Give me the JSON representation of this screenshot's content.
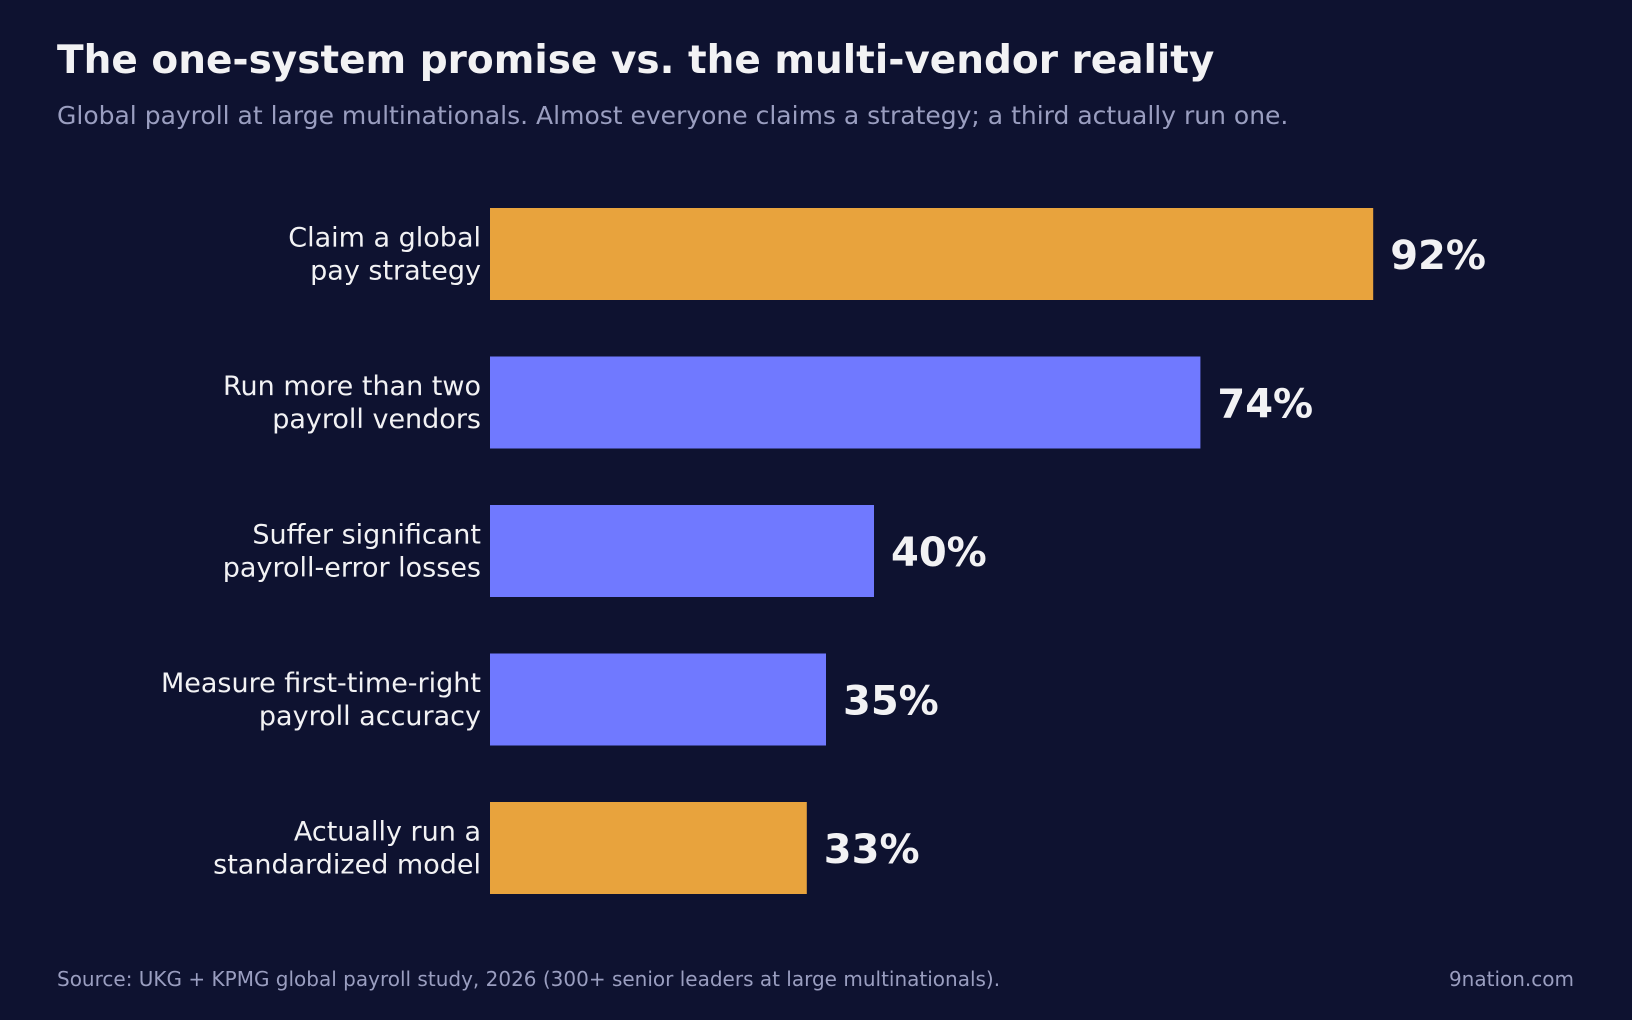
{
  "header": {
    "title": "The one-system promise vs. the multi-vendor reality",
    "subtitle": "Global payroll at large multinationals. Almost everyone claims a strategy; a third actually run one."
  },
  "footer": {
    "source": "Source: UKG + KPMG global payroll study, 2026 (300+ senior leaders at large multinationals).",
    "site": "9nation.com"
  },
  "colors": {
    "background": "#0e1230",
    "highlight": "#e8a33d",
    "default": "#7079ff",
    "label": "#f2f2f4",
    "muted": "#9a9ec0"
  },
  "chart_data": {
    "type": "bar",
    "orientation": "horizontal",
    "title": "The one-system promise vs. the multi-vendor reality",
    "subtitle": "Global payroll at large multinationals. Almost everyone claims a strategy; a third actually run one.",
    "categories": [
      [
        "Claim a global",
        "pay strategy"
      ],
      [
        "Run more than two",
        "payroll vendors"
      ],
      [
        "Suffer significant",
        "payroll-error losses"
      ],
      [
        "Measure first-time-right",
        "payroll accuracy"
      ],
      [
        "Actually run a",
        "standardized model"
      ]
    ],
    "values": [
      92,
      74,
      40,
      35,
      33
    ],
    "value_labels": [
      "92%",
      "74%",
      "40%",
      "35%",
      "33%"
    ],
    "highlight": [
      true,
      false,
      false,
      false,
      true
    ],
    "xlim": [
      0,
      100
    ],
    "unit": "%",
    "grid": false,
    "legend": "none"
  }
}
